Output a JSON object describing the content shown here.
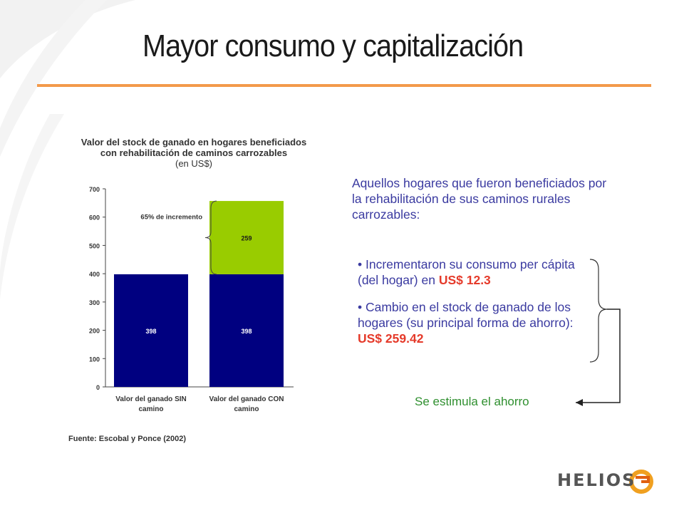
{
  "slide": {
    "title": "Mayor consumo y capitalización"
  },
  "chart_data": {
    "type": "bar",
    "stacked": true,
    "title": "Valor del stock de ganado en hogares beneficiados con rehabilitación de caminos carrozables",
    "title_line1": "Valor del stock de ganado en hogares beneficiados",
    "title_line2": "con rehabilitación de caminos carrozables",
    "unit": "(en US$)",
    "categories": [
      "Valor del ganado SIN camino",
      "Valor del ganado CON camino"
    ],
    "category_lines": [
      [
        "Valor del ganado SIN",
        "camino"
      ],
      [
        "Valor del ganado CON",
        "camino"
      ]
    ],
    "series": [
      {
        "values": [
          398,
          398
        ],
        "labels": [
          "398",
          "398"
        ],
        "color": "#000080"
      },
      {
        "values": [
          0,
          259
        ],
        "labels": [
          "",
          "259"
        ],
        "color": "#99cc00"
      }
    ],
    "ylim": [
      0,
      700
    ],
    "yticks": [
      "0",
      "100",
      "200",
      "300",
      "400",
      "500",
      "600",
      "700"
    ],
    "grid": false,
    "annotation": "65% de incremento",
    "source": "Fuente: Escobal y Ponce (2002)"
  },
  "text": {
    "intro": "Aquellos hogares que fueron beneficiados por la rehabilitación de sus caminos rurales carrozables:",
    "bullet1_prefix": "• Incrementaron su consumo per cápita (del hogar) en ",
    "bullet1_value": "US$ 12.3",
    "bullet2_prefix": "• Cambio en el stock de ganado de los hogares (su principal forma de ahorro): ",
    "bullet2_value": "US$ 259.42",
    "conclusion": "Se estimula el ahorro"
  },
  "logo": {
    "text": "HELIOS"
  },
  "colors": {
    "accent_rule": "#f39a4b",
    "text_blue": "#3a3aa0",
    "highlight_red": "#e53a2a",
    "conclusion_green": "#2f8f2f"
  }
}
